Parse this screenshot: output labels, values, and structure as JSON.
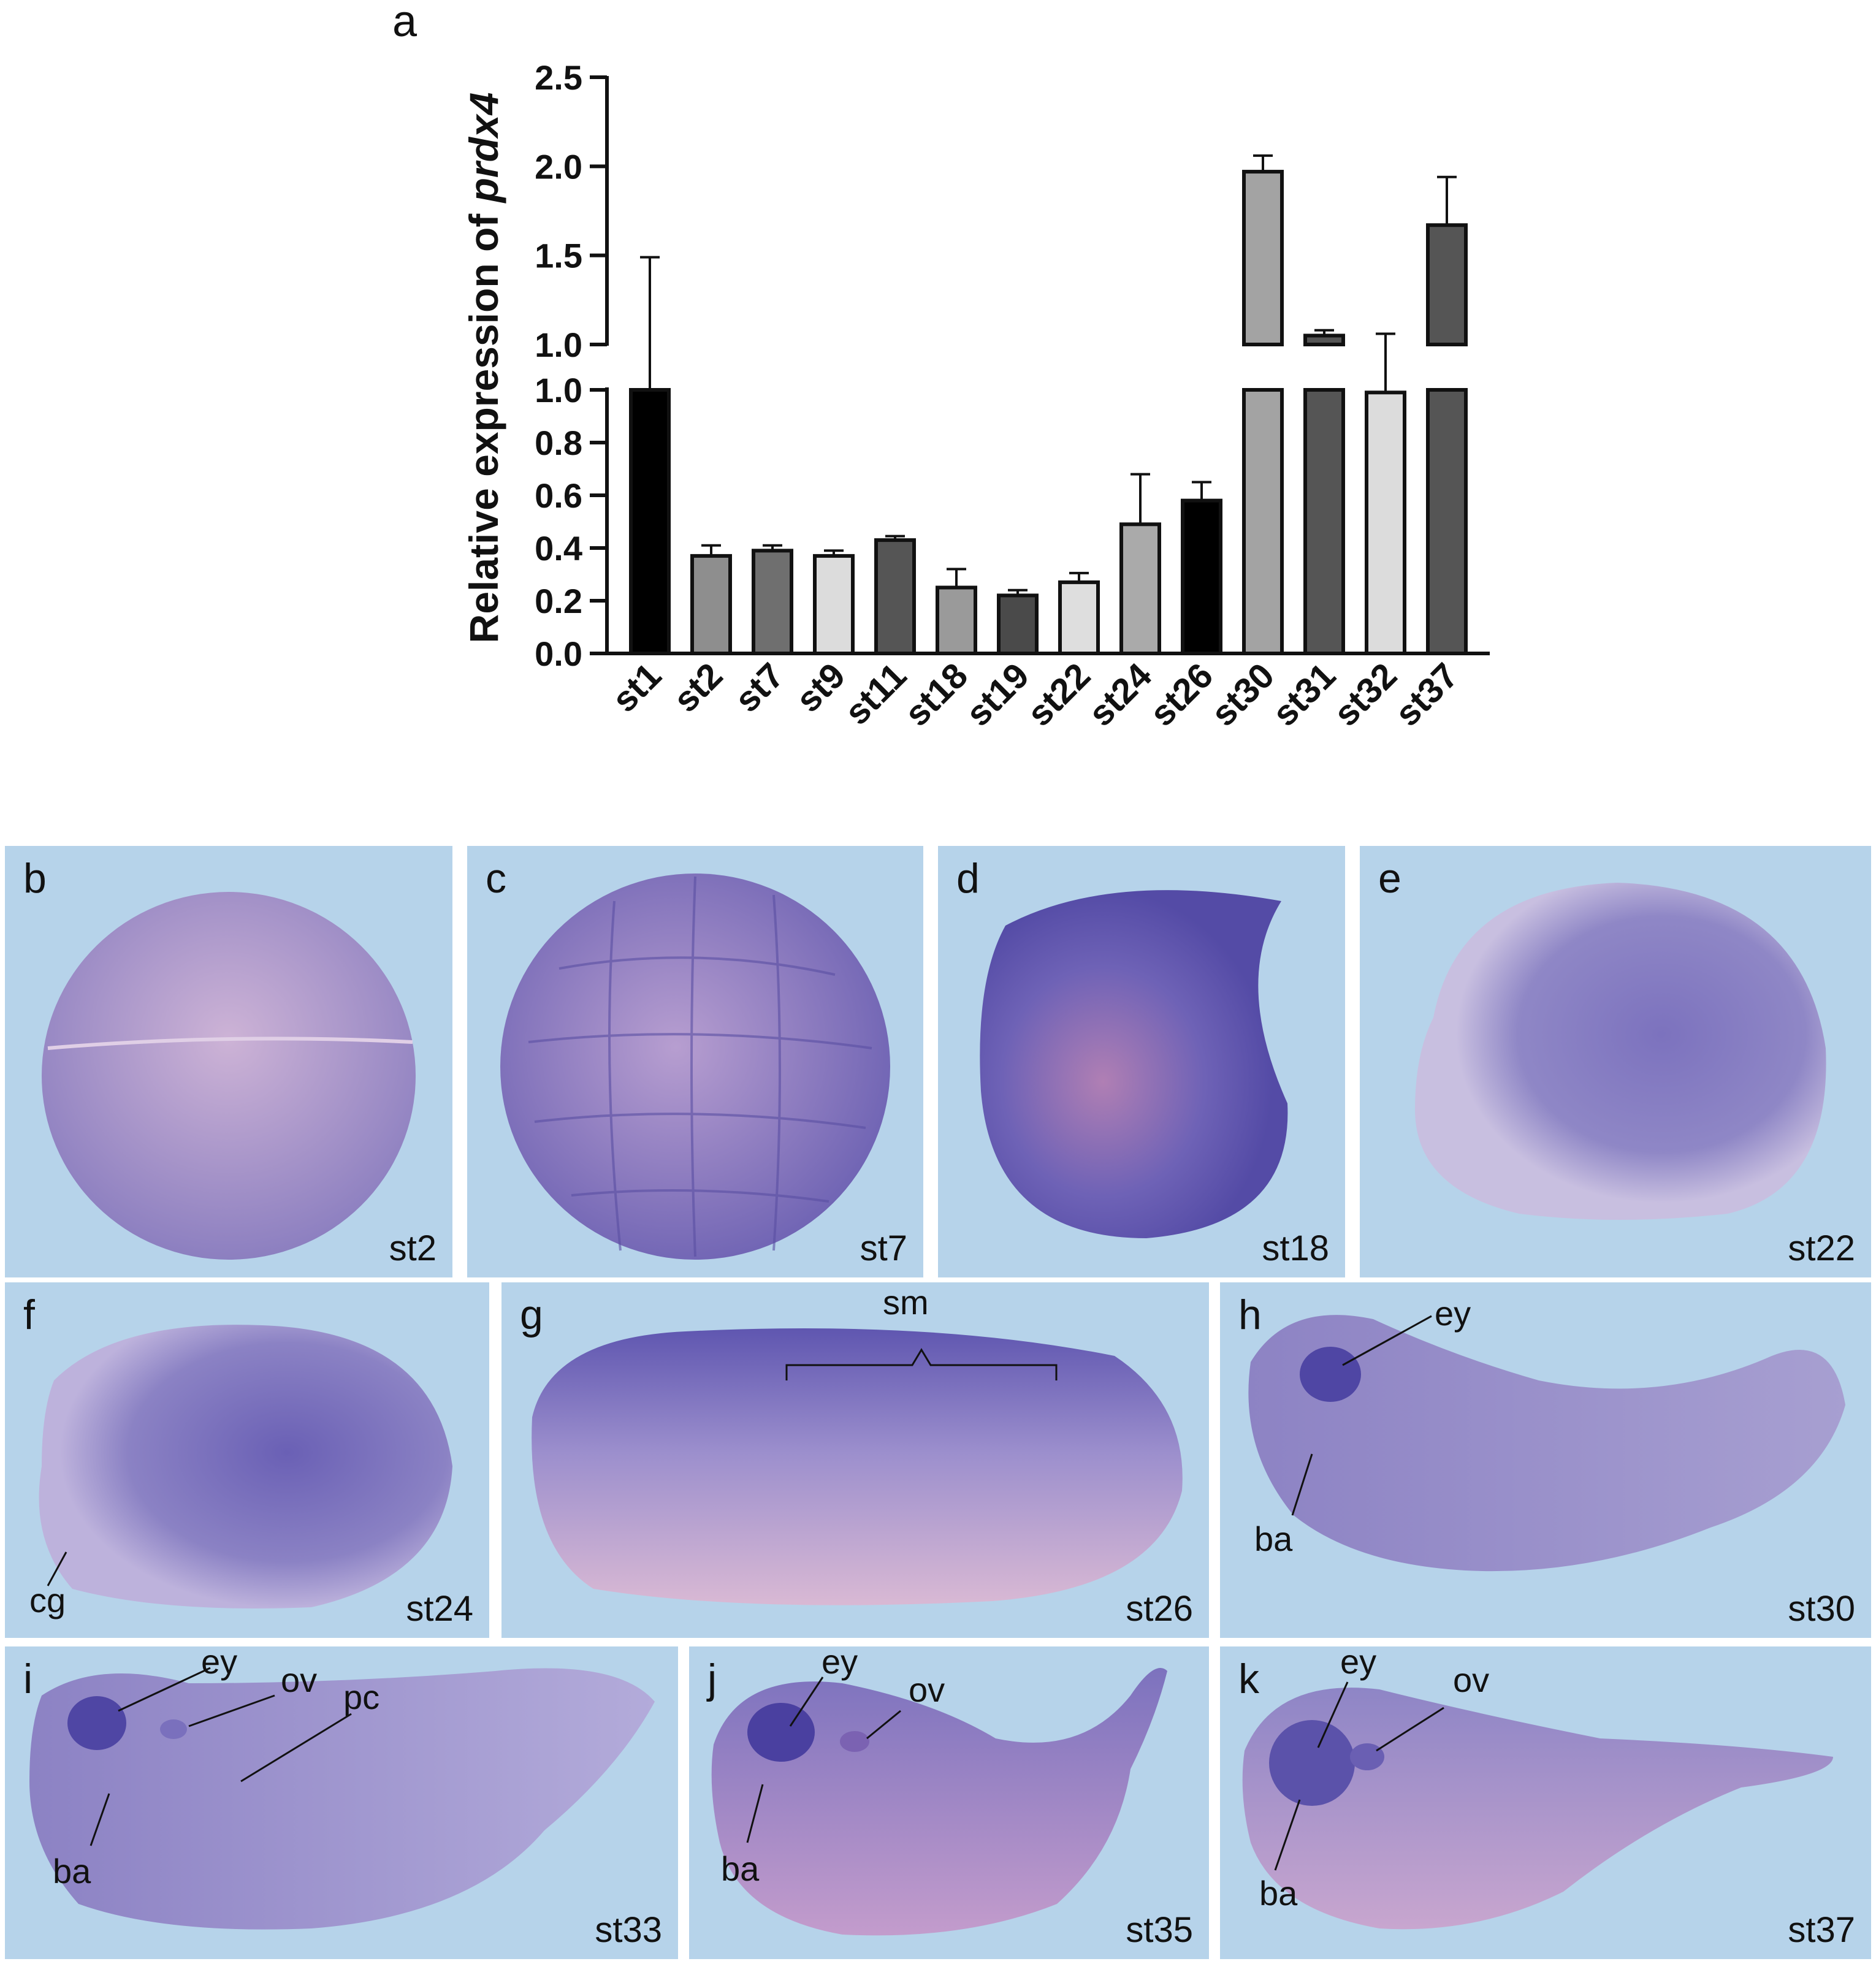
{
  "panel_a": {
    "letter": "a"
  },
  "chart_data": {
    "type": "bar",
    "title": "",
    "xlabel": "",
    "ylabel_prefix": "Relative expression of ",
    "ylabel_gene": "prdx4",
    "categories": [
      "st1",
      "st2",
      "st7",
      "st9",
      "st11",
      "st18",
      "st19",
      "st22",
      "st24",
      "st26",
      "st30",
      "st31",
      "st32",
      "st37"
    ],
    "values": [
      1.0,
      0.37,
      0.39,
      0.37,
      0.43,
      0.25,
      0.22,
      0.27,
      0.49,
      0.58,
      1.97,
      1.05,
      0.99,
      1.67
    ],
    "errors": [
      0.49,
      0.04,
      0.02,
      0.02,
      0.015,
      0.07,
      0.02,
      0.035,
      0.19,
      0.07,
      0.09,
      0.03,
      0.07,
      0.27
    ],
    "fills": [
      "#000000",
      "#8e8e8e",
      "#6f6f6f",
      "#dcdcdc",
      "#555555",
      "#9a9a9a",
      "#4a4a4a",
      "#dedede",
      "#aaaaaa",
      "#000000",
      "#a3a3a3",
      "#555555",
      "#dcdcdc",
      "#555555"
    ],
    "axis_break": {
      "lower_range": [
        0,
        1.0
      ],
      "upper_range": [
        1.0,
        2.5
      ]
    },
    "lower_ticks": [
      "0.0",
      "0.2",
      "0.4",
      "0.6",
      "0.8",
      "1.0"
    ],
    "upper_ticks": [
      "1.0",
      "1.5",
      "2.0",
      "2.5"
    ],
    "grid": false,
    "legend": "none"
  },
  "panels": [
    {
      "letter": "b",
      "stage": "st2"
    },
    {
      "letter": "c",
      "stage": "st7"
    },
    {
      "letter": "d",
      "stage": "st18"
    },
    {
      "letter": "e",
      "stage": "st22"
    },
    {
      "letter": "f",
      "stage": "st24",
      "annotations": [
        "cg"
      ]
    },
    {
      "letter": "g",
      "stage": "st26",
      "annotations": [
        "sm"
      ]
    },
    {
      "letter": "h",
      "stage": "st30",
      "annotations": [
        "ey",
        "ba"
      ]
    },
    {
      "letter": "i",
      "stage": "st33",
      "annotations": [
        "ey",
        "ov",
        "pc",
        "ba"
      ]
    },
    {
      "letter": "j",
      "stage": "st35",
      "annotations": [
        "ey",
        "ov",
        "ba"
      ]
    },
    {
      "letter": "k",
      "stage": "st37",
      "annotations": [
        "ey",
        "ov",
        "ba"
      ]
    }
  ],
  "colors": {
    "background_blue": "#b6d3ea",
    "embryo_purple": "#6f67b8",
    "embryo_pink": "#c8a6cf"
  }
}
